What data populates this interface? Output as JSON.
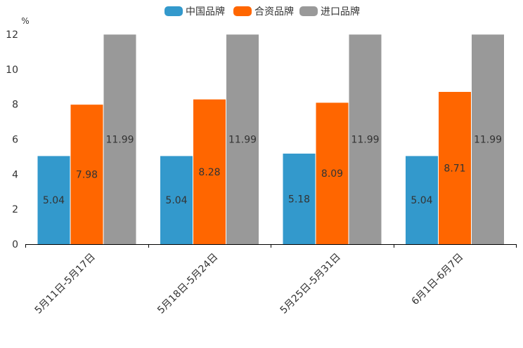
{
  "chart_data": {
    "type": "bar",
    "title": "",
    "ylabel": "%",
    "xlabel": "",
    "ylim": [
      0,
      12
    ],
    "yticks": [
      0,
      2,
      4,
      6,
      8,
      10,
      12
    ],
    "categories": [
      "5月11日-5月17日",
      "5月18日-5月24日",
      "5月25日-5月31日",
      "6月1日-6月7日"
    ],
    "series": [
      {
        "name": "中国品牌",
        "color": "#3399cc",
        "values": [
          5.04,
          5.04,
          5.18,
          5.04
        ]
      },
      {
        "name": "合资品牌",
        "color": "#ff6600",
        "values": [
          7.98,
          8.28,
          8.09,
          8.71
        ]
      },
      {
        "name": "进口品牌",
        "color": "#999999",
        "values": [
          11.99,
          11.99,
          11.99,
          11.99
        ]
      }
    ],
    "legend_position": "top-center",
    "grid": false
  }
}
